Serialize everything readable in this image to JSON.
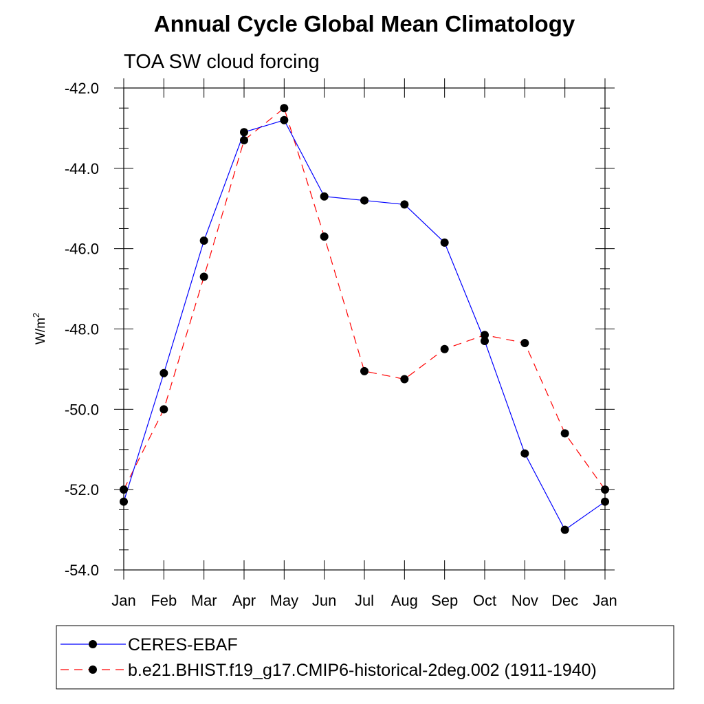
{
  "chart_data": {
    "type": "line",
    "title": "Annual Cycle Global Mean Climatology",
    "subtitle": "TOA SW cloud forcing",
    "ylabel": "W/m",
    "ylabel_superscript": "2",
    "ylim": [
      -54.0,
      -42.0
    ],
    "yticks": [
      -42.0,
      -44.0,
      -46.0,
      -48.0,
      -50.0,
      -52.0,
      -54.0
    ],
    "ytick_labels": [
      "-42.0",
      "-44.0",
      "-46.0",
      "-48.0",
      "-50.0",
      "-52.0",
      "-54.0"
    ],
    "categories": [
      "Jan",
      "Feb",
      "Mar",
      "Apr",
      "May",
      "Jun",
      "Jul",
      "Aug",
      "Sep",
      "Oct",
      "Nov",
      "Dec",
      "Jan"
    ],
    "grid": false,
    "legend_position": "bottom",
    "series": [
      {
        "name": "CERES-EBAF",
        "color": "#0000ff",
        "dash": "solid",
        "values": [
          -52.3,
          -49.1,
          -45.8,
          -43.1,
          -42.8,
          -44.7,
          -44.8,
          -44.9,
          -45.85,
          -48.3,
          -51.1,
          -53.0,
          -52.3
        ]
      },
      {
        "name": "b.e21.BHIST.f19_g17.CMIP6-historical-2deg.002 (1911-1940)",
        "color": "#ff0000",
        "dash": "dashed",
        "values": [
          -52.0,
          -50.0,
          -46.7,
          -43.3,
          -42.5,
          -45.7,
          -49.05,
          -49.25,
          -48.5,
          -48.15,
          -48.35,
          -50.6,
          -52.0
        ]
      }
    ]
  }
}
